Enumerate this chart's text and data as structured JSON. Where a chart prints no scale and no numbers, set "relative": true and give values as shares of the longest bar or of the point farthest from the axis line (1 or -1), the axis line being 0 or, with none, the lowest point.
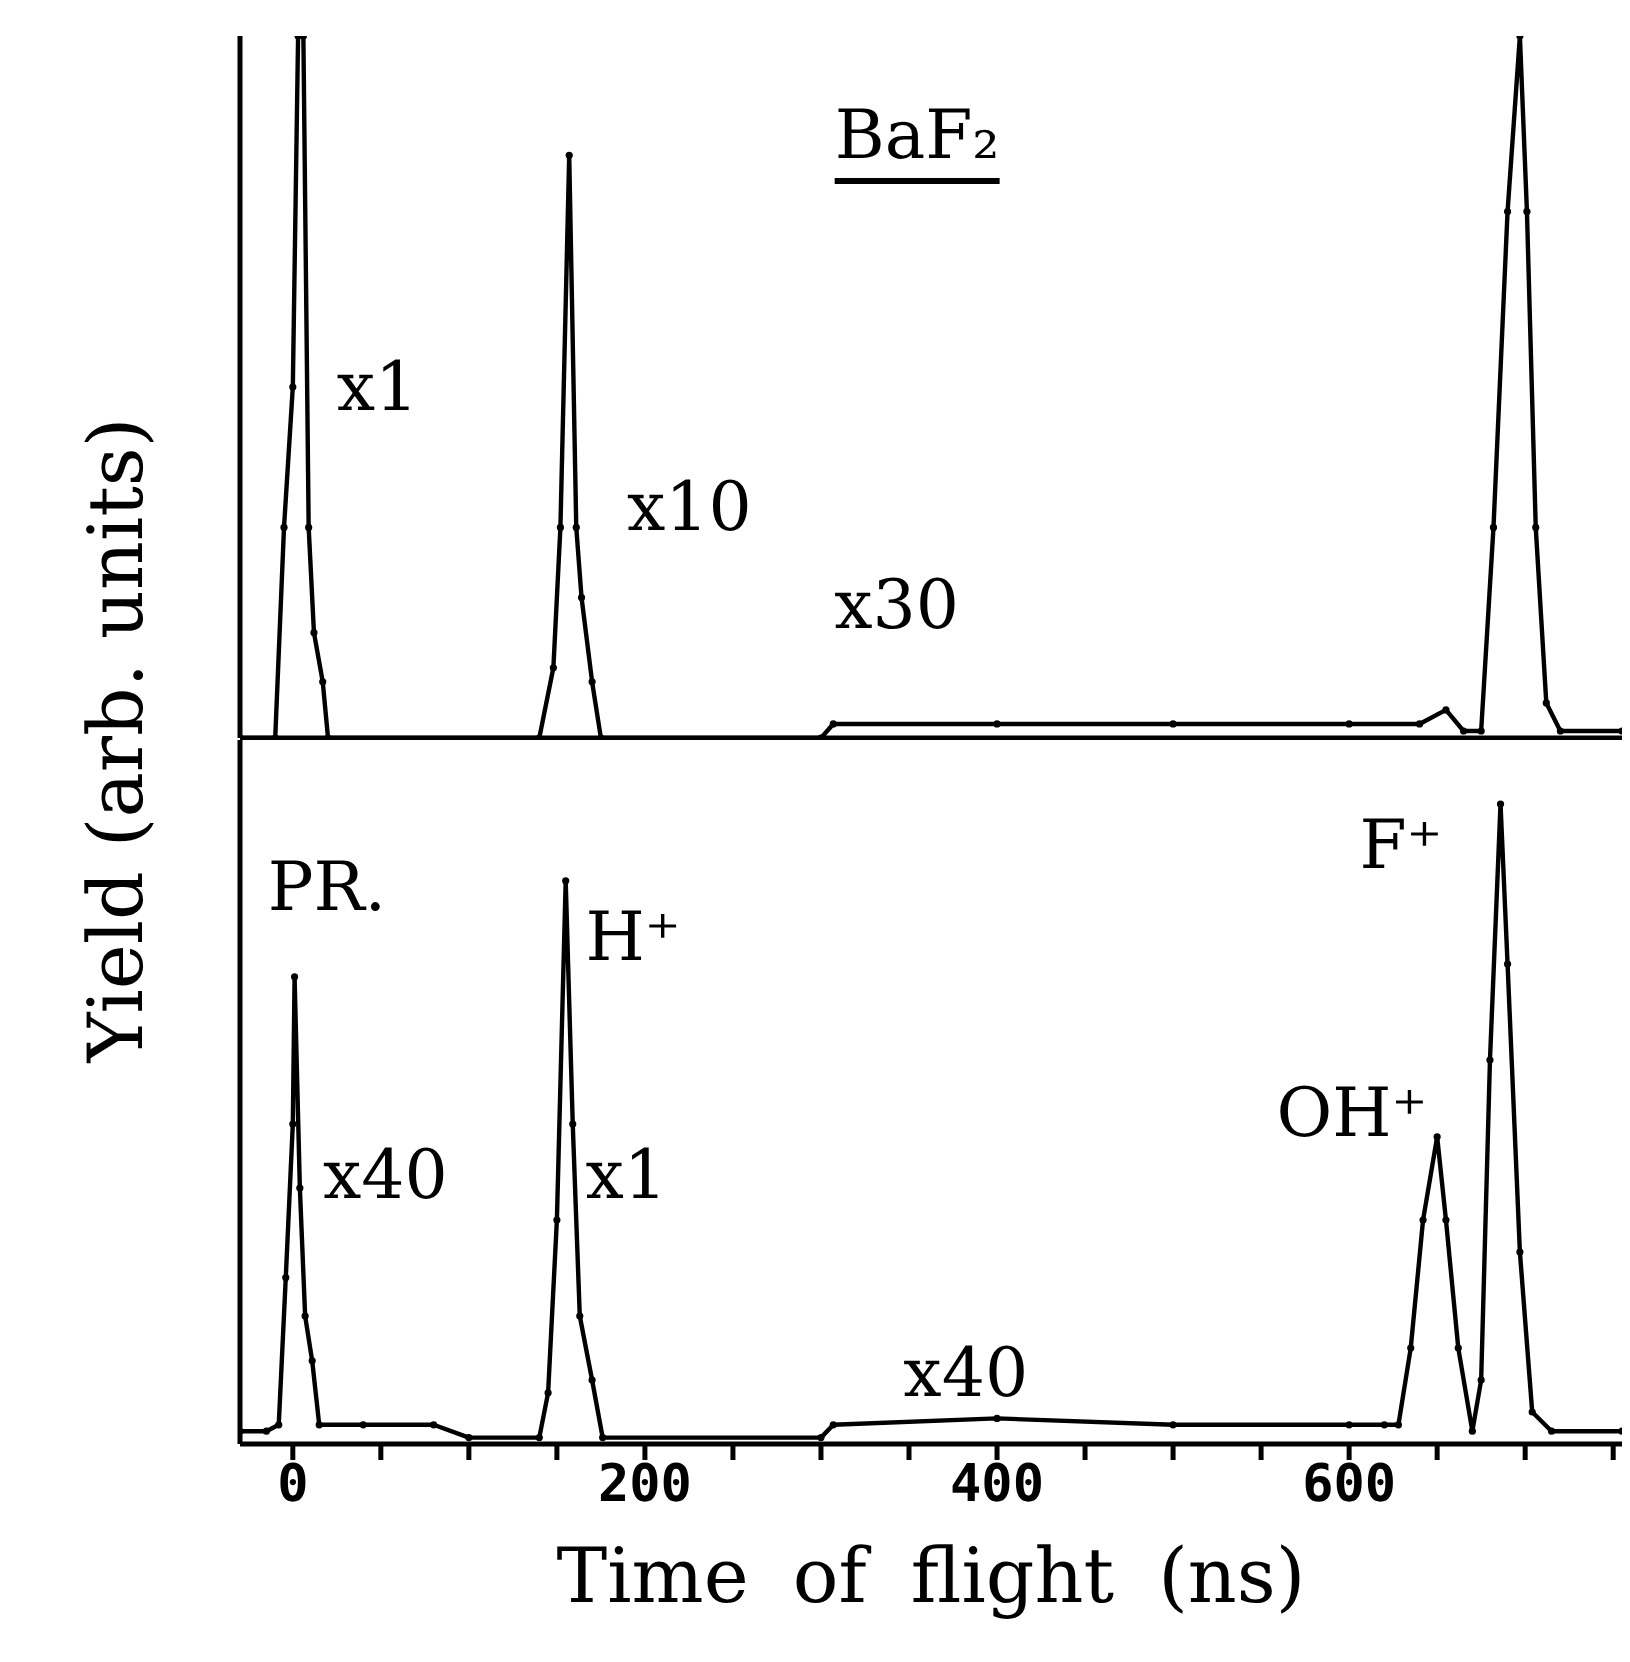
{
  "chart_data": [
    {
      "type": "line",
      "title": "BaF₂",
      "ylabel": "Yield (arb. units)",
      "relative": true,
      "marker": "circle",
      "line_style": "solid",
      "tick_labels": false,
      "xlim": [
        -30,
        755
      ],
      "xticks": [
        {
          "value": 0,
          "label": null
        },
        {
          "value": 50,
          "label": null
        },
        {
          "value": 100,
          "label": null
        },
        {
          "value": 150,
          "label": null
        },
        {
          "value": 200,
          "label": null
        },
        {
          "value": 250,
          "label": null
        },
        {
          "value": 300,
          "label": null
        },
        {
          "value": 350,
          "label": null
        },
        {
          "value": 400,
          "label": null
        },
        {
          "value": 450,
          "label": null
        },
        {
          "value": 500,
          "label": null
        },
        {
          "value": 550,
          "label": null
        },
        {
          "value": 600,
          "label": null
        },
        {
          "value": 650,
          "label": null
        },
        {
          "value": 700,
          "label": null
        },
        {
          "value": 750,
          "label": null
        }
      ],
      "series": [
        {
          "color": "#000000",
          "x": [
            -30,
            -10,
            -5,
            0,
            3,
            6,
            9,
            12,
            17,
            20,
            140,
            148,
            152,
            157,
            161,
            164,
            170,
            175,
            300,
            307,
            400,
            500,
            600,
            640,
            655,
            665,
            675,
            682,
            690,
            697,
            701,
            706,
            712,
            720,
            755
          ],
          "values": [
            0,
            0,
            0.3,
            0.5,
            1,
            1,
            0.3,
            0.15,
            0.08,
            0,
            0,
            0.1,
            0.3,
            0.83,
            0.3,
            0.2,
            0.08,
            0,
            0,
            0.02,
            0.02,
            0.02,
            0.02,
            0.02,
            0.04,
            0.01,
            0.01,
            0.3,
            0.75,
            1,
            0.75,
            0.3,
            0.05,
            0.01,
            0.01
          ]
        }
      ],
      "annotations": [
        "x1",
        "x10",
        "x30"
      ]
    },
    {
      "type": "line",
      "xlabel": "Time of flight (ns)",
      "relative": true,
      "marker": "circle",
      "line_style": "solid",
      "tick_labels": "x",
      "xlim": [
        -30,
        755
      ],
      "xticks": [
        0,
        {
          "value": 50,
          "label": null
        },
        {
          "value": 100,
          "label": null
        },
        {
          "value": 150,
          "label": null
        },
        200,
        {
          "value": 250,
          "label": null
        },
        {
          "value": 300,
          "label": null
        },
        {
          "value": 350,
          "label": null
        },
        400,
        {
          "value": 450,
          "label": null
        },
        {
          "value": 500,
          "label": null
        },
        {
          "value": 550,
          "label": null
        },
        600,
        {
          "value": 650,
          "label": null
        },
        {
          "value": 700,
          "label": null
        },
        {
          "value": 750,
          "label": null
        }
      ],
      "series": [
        {
          "color": "#000000",
          "x": [
            -30,
            -15,
            -8,
            -4,
            0,
            1,
            4,
            7,
            11,
            15,
            40,
            80,
            100,
            140,
            145,
            150,
            155,
            159,
            163,
            170,
            176,
            300,
            307,
            400,
            500,
            600,
            620,
            628,
            635,
            642,
            650,
            655,
            662,
            670,
            675,
            680,
            686,
            690,
            697,
            704,
            715,
            755
          ],
          "values": [
            0.02,
            0.02,
            0.03,
            0.26,
            0.5,
            0.73,
            0.4,
            0.2,
            0.13,
            0.03,
            0.03,
            0.03,
            0.01,
            0.01,
            0.08,
            0.35,
            0.88,
            0.5,
            0.2,
            0.1,
            0.01,
            0.01,
            0.03,
            0.04,
            0.03,
            0.03,
            0.03,
            0.03,
            0.15,
            0.35,
            0.48,
            0.35,
            0.15,
            0.02,
            0.1,
            0.6,
            1,
            0.75,
            0.3,
            0.05,
            0.02,
            0.02
          ]
        }
      ],
      "annotations": [
        "PR.",
        "H⁺",
        "x40",
        "x1",
        "x40",
        "OH⁺",
        "F⁺"
      ]
    }
  ]
}
